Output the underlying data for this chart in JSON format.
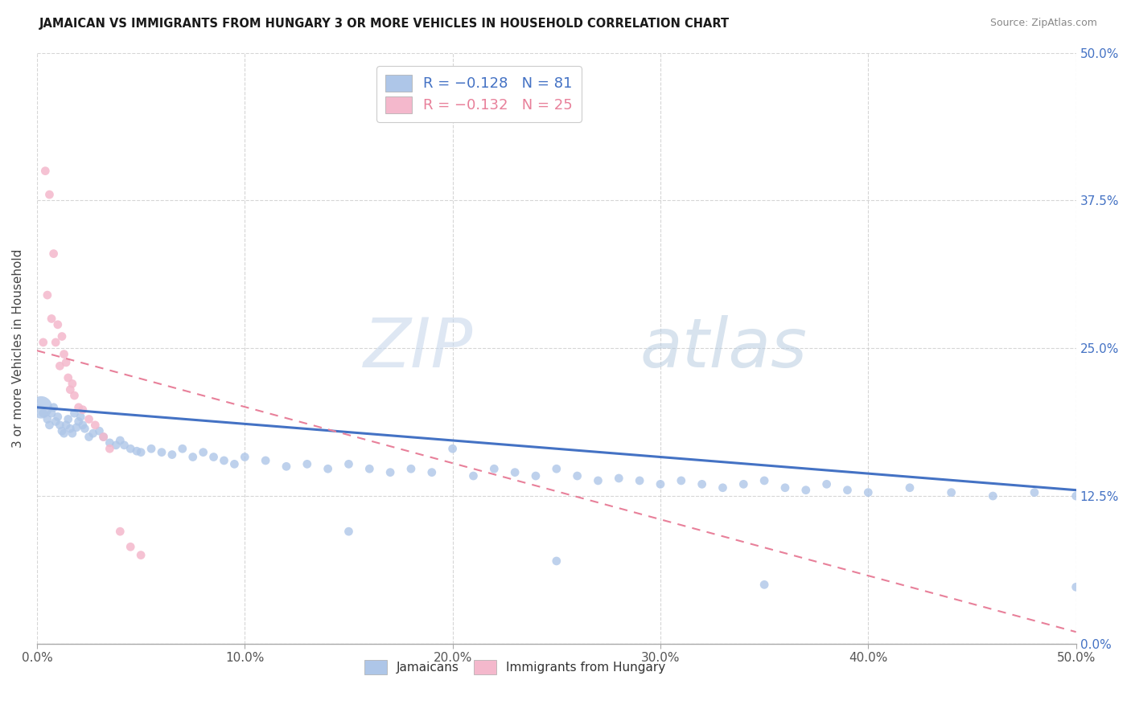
{
  "title": "JAMAICAN VS IMMIGRANTS FROM HUNGARY 3 OR MORE VEHICLES IN HOUSEHOLD CORRELATION CHART",
  "source": "Source: ZipAtlas.com",
  "ylabel": "3 or more Vehicles in Household",
  "legend_label1": "Jamaicans",
  "legend_label2": "Immigrants from Hungary",
  "color_jamaican": "#aec6e8",
  "color_hungarian": "#f4b8cc",
  "color_line_jamaican": "#4472c4",
  "color_line_hungarian": "#e8809a",
  "color_watermark": "#d0dff0",
  "watermark_zip": "ZIP",
  "watermark_atlas": "atlas",
  "background_color": "#ffffff",
  "j_x": [
    0.002,
    0.003,
    0.005,
    0.006,
    0.007,
    0.008,
    0.009,
    0.01,
    0.011,
    0.012,
    0.013,
    0.014,
    0.015,
    0.016,
    0.017,
    0.018,
    0.019,
    0.02,
    0.021,
    0.022,
    0.023,
    0.025,
    0.027,
    0.03,
    0.032,
    0.035,
    0.038,
    0.04,
    0.042,
    0.045,
    0.048,
    0.05,
    0.055,
    0.06,
    0.065,
    0.07,
    0.075,
    0.08,
    0.085,
    0.09,
    0.095,
    0.1,
    0.11,
    0.12,
    0.13,
    0.14,
    0.15,
    0.16,
    0.17,
    0.18,
    0.19,
    0.2,
    0.21,
    0.22,
    0.23,
    0.24,
    0.25,
    0.26,
    0.27,
    0.28,
    0.29,
    0.3,
    0.31,
    0.32,
    0.33,
    0.34,
    0.35,
    0.36,
    0.37,
    0.38,
    0.39,
    0.4,
    0.42,
    0.44,
    0.46,
    0.48,
    0.5,
    0.15,
    0.25,
    0.5,
    0.35
  ],
  "j_y": [
    0.2,
    0.195,
    0.19,
    0.185,
    0.195,
    0.2,
    0.188,
    0.192,
    0.185,
    0.18,
    0.178,
    0.185,
    0.19,
    0.182,
    0.178,
    0.195,
    0.183,
    0.188,
    0.192,
    0.185,
    0.182,
    0.175,
    0.178,
    0.18,
    0.175,
    0.17,
    0.168,
    0.172,
    0.168,
    0.165,
    0.163,
    0.162,
    0.165,
    0.162,
    0.16,
    0.165,
    0.158,
    0.162,
    0.158,
    0.155,
    0.152,
    0.158,
    0.155,
    0.15,
    0.152,
    0.148,
    0.152,
    0.148,
    0.145,
    0.148,
    0.145,
    0.165,
    0.142,
    0.148,
    0.145,
    0.142,
    0.148,
    0.142,
    0.138,
    0.14,
    0.138,
    0.135,
    0.138,
    0.135,
    0.132,
    0.135,
    0.138,
    0.132,
    0.13,
    0.135,
    0.13,
    0.128,
    0.132,
    0.128,
    0.125,
    0.128,
    0.125,
    0.095,
    0.07,
    0.048,
    0.05
  ],
  "j_sizes": [
    400,
    60,
    60,
    60,
    60,
    60,
    60,
    60,
    60,
    60,
    60,
    60,
    60,
    60,
    60,
    60,
    60,
    60,
    60,
    60,
    60,
    60,
    60,
    60,
    60,
    60,
    60,
    60,
    60,
    60,
    60,
    60,
    60,
    60,
    60,
    60,
    60,
    60,
    60,
    60,
    60,
    60,
    60,
    60,
    60,
    60,
    60,
    60,
    60,
    60,
    60,
    60,
    60,
    60,
    60,
    60,
    60,
    60,
    60,
    60,
    60,
    60,
    60,
    60,
    60,
    60,
    60,
    60,
    60,
    60,
    60,
    60,
    60,
    60,
    60,
    60,
    60,
    60,
    60,
    60,
    60
  ],
  "h_x": [
    0.003,
    0.004,
    0.005,
    0.006,
    0.007,
    0.008,
    0.009,
    0.01,
    0.011,
    0.012,
    0.013,
    0.014,
    0.015,
    0.016,
    0.017,
    0.018,
    0.02,
    0.022,
    0.025,
    0.028,
    0.032,
    0.035,
    0.04,
    0.045,
    0.05
  ],
  "h_y": [
    0.255,
    0.4,
    0.295,
    0.38,
    0.275,
    0.33,
    0.255,
    0.27,
    0.235,
    0.26,
    0.245,
    0.238,
    0.225,
    0.215,
    0.22,
    0.21,
    0.2,
    0.198,
    0.19,
    0.185,
    0.175,
    0.165,
    0.095,
    0.082,
    0.075
  ],
  "h_sizes": [
    60,
    60,
    60,
    60,
    60,
    60,
    60,
    60,
    60,
    60,
    60,
    60,
    60,
    60,
    60,
    60,
    60,
    60,
    60,
    60,
    60,
    60,
    60,
    60,
    60
  ],
  "jline_x": [
    0.0,
    0.5
  ],
  "jline_y": [
    0.2,
    0.13
  ],
  "hline_x": [
    0.0,
    0.5
  ],
  "hline_y": [
    0.248,
    0.01
  ],
  "xticks": [
    0.0,
    0.1,
    0.2,
    0.3,
    0.4,
    0.5
  ],
  "xticklabels": [
    "0.0%",
    "10.0%",
    "20.0%",
    "30.0%",
    "40.0%",
    "50.0%"
  ],
  "yticks": [
    0.0,
    0.125,
    0.25,
    0.375,
    0.5
  ],
  "yticklabels_right": [
    "0.0%",
    "12.5%",
    "25.0%",
    "37.5%",
    "50.0%"
  ],
  "xlim": [
    0.0,
    0.5
  ],
  "ylim": [
    0.0,
    0.5
  ]
}
